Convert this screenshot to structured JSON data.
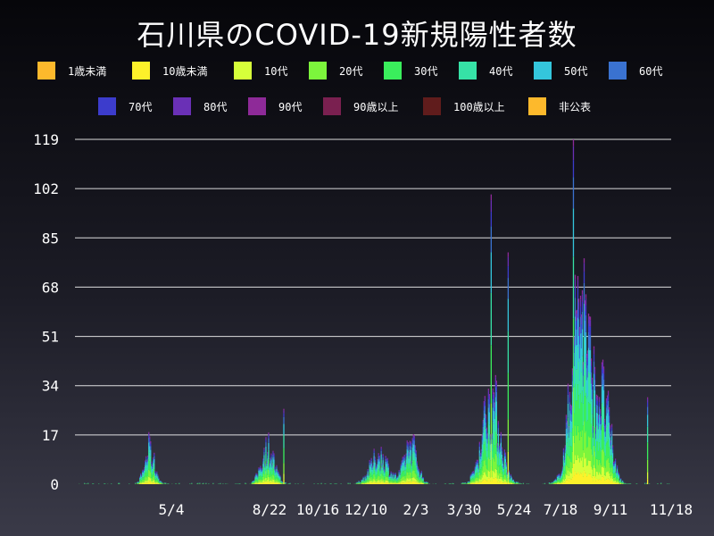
{
  "title": "石川県のCOVID-19新規陽性者数",
  "colors": {
    "background_top": "#06060a",
    "background_bottom": "#3a3a48",
    "gridline": "#ffffff",
    "text": "#ffffff"
  },
  "legend": [
    {
      "label": "1歳未満",
      "color": "#fdb92c"
    },
    {
      "label": "10歳未満",
      "color": "#fdf12a"
    },
    {
      "label": "10代",
      "color": "#d6ff3a"
    },
    {
      "label": "20代",
      "color": "#7cf53c"
    },
    {
      "label": "30代",
      "color": "#3aee5c"
    },
    {
      "label": "40代",
      "color": "#36e2a6"
    },
    {
      "label": "50代",
      "color": "#34c6dc"
    },
    {
      "label": "60代",
      "color": "#3a72d0"
    },
    {
      "label": "70代",
      "color": "#3c3ccc"
    },
    {
      "label": "80代",
      "color": "#6a30b6"
    },
    {
      "label": "90代",
      "color": "#8e2a98"
    },
    {
      "label": "90歳以上",
      "color": "#7a2050"
    },
    {
      "label": "100歳以上",
      "color": "#601c1c"
    },
    {
      "label": "非公表",
      "color": "#fdb92c"
    }
  ],
  "chart_data": {
    "type": "bar",
    "stacked": true,
    "title": "石川県のCOVID-19新規陽性者数",
    "ylim": [
      0,
      119
    ],
    "yticks": [
      "0",
      "17",
      "34",
      "51",
      "68",
      "85",
      "102",
      "119"
    ],
    "xticks": [
      "5/4",
      "8/22",
      "10/16",
      "12/10",
      "2/3",
      "3/30",
      "5/24",
      "7/18",
      "9/11",
      "11/18"
    ],
    "grid": true,
    "legend_position": "top",
    "series": [
      {
        "name": "1歳未満"
      },
      {
        "name": "10歳未満"
      },
      {
        "name": "10代"
      },
      {
        "name": "20代"
      },
      {
        "name": "30代"
      },
      {
        "name": "40代"
      },
      {
        "name": "50代"
      },
      {
        "name": "60代"
      },
      {
        "name": "70代"
      },
      {
        "name": "80代"
      },
      {
        "name": "90代"
      },
      {
        "name": "90歳以上"
      },
      {
        "name": "100歳以上"
      },
      {
        "name": "非公表"
      }
    ],
    "totals_profile": [
      {
        "period": "4/2020",
        "approx_peak": 18
      },
      {
        "period": "8/2020",
        "approx_peak": 26
      },
      {
        "period": "1/2021",
        "approx_peak": 24
      },
      {
        "period": "2/2021",
        "approx_peak": 29
      },
      {
        "period": "5/2021",
        "approx_peak": 100
      },
      {
        "period": "8/2021",
        "approx_peak": 119
      },
      {
        "period": "9/2021",
        "approx_peak": 30
      }
    ]
  }
}
